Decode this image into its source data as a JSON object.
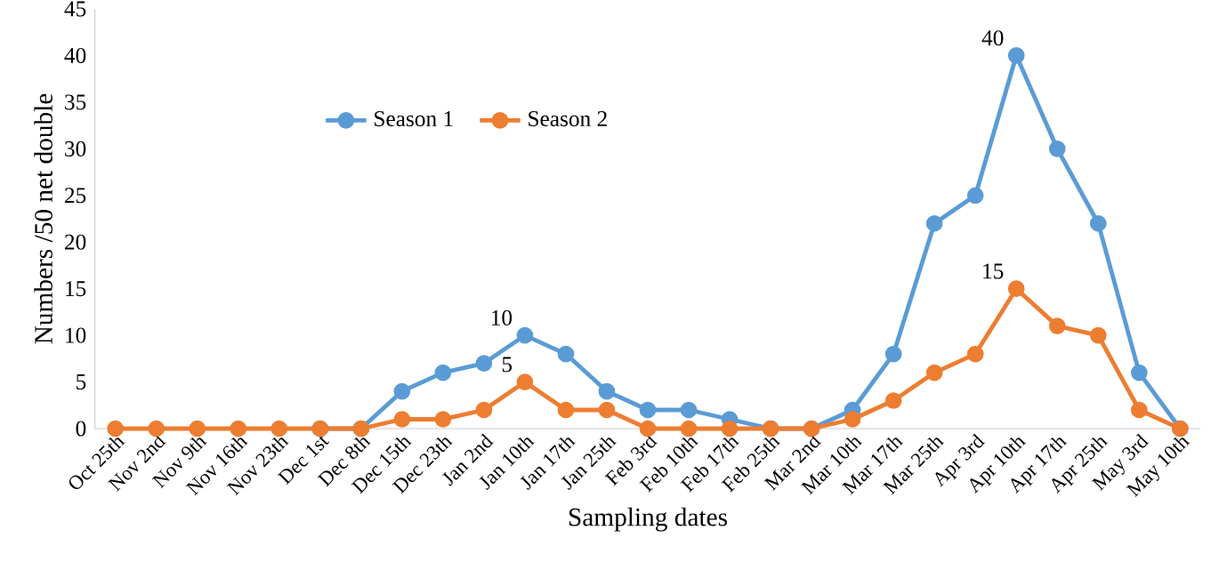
{
  "chart_data": {
    "type": "line",
    "xlabel": "Sampling dates",
    "ylabel": "Numbers /50 net double",
    "categories": [
      "Oct 25th",
      "Nov 2nd",
      "Nov 9th",
      "Nov 16th",
      "Nov 23th",
      "Dec 1st",
      "Dec 8th",
      "Dec 15th",
      "Dec 23th",
      "Jan 2nd",
      "Jan 10th",
      "Jan 17th",
      "Jan 25th",
      "Feb 3rd",
      "Feb 10th",
      "Feb 17th",
      "Feb 25th",
      "Mar 2nd",
      "Mar 10th",
      "Mar 17th",
      "Mar 25th",
      "Apr 3rd",
      "Apr 10th",
      "Apr 17th",
      "Apr 25th",
      "May 3rd",
      "May 10th"
    ],
    "series": [
      {
        "name": "Season 1",
        "color": "#5b9bd5",
        "values": [
          null,
          null,
          null,
          null,
          null,
          0,
          0,
          4,
          6,
          7,
          10,
          8,
          4,
          2,
          2,
          1,
          0,
          0,
          2,
          8,
          22,
          25,
          40,
          30,
          22,
          6,
          0
        ]
      },
      {
        "name": "Season 2",
        "color": "#ed7d31",
        "values": [
          0,
          0,
          0,
          0,
          0,
          0,
          0,
          1,
          1,
          2,
          5,
          2,
          2,
          0,
          0,
          0,
          0,
          0,
          1,
          3,
          6,
          8,
          15,
          11,
          10,
          2,
          0
        ]
      }
    ],
    "annotations": [
      {
        "text": "10",
        "x": "Jan 10th",
        "y": 10
      },
      {
        "text": "5",
        "x": "Jan 10th",
        "y": 5
      },
      {
        "text": "40",
        "x": "Apr 10th",
        "y": 40
      },
      {
        "text": "15",
        "x": "Apr 10th",
        "y": 15
      }
    ],
    "ylim": [
      0,
      45
    ],
    "yticks": [
      0,
      5,
      10,
      15,
      20,
      25,
      30,
      35,
      40,
      45
    ],
    "marker": "circle",
    "line_style": "solid",
    "legend": "top left",
    "grid": false
  }
}
